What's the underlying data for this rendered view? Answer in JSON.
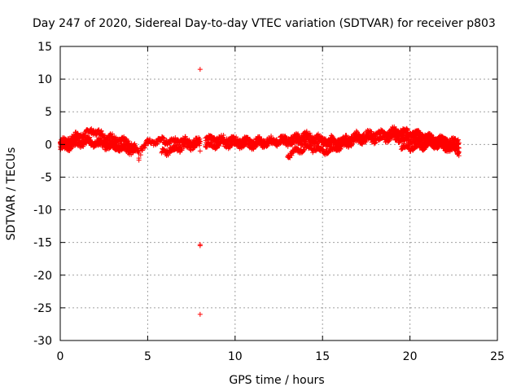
{
  "chart_data": {
    "type": "scatter",
    "title": "Day 247 of 2020, Sidereal Day-to-day VTEC variation (SDTVAR) for receiver p803",
    "xlabel": "GPS time / hours",
    "ylabel": "SDTVAR / TECUs",
    "xlim": [
      0,
      25
    ],
    "ylim": [
      -30,
      15
    ],
    "xticks": [
      0,
      5,
      10,
      15,
      20,
      25
    ],
    "yticks": [
      15,
      10,
      5,
      0,
      -5,
      -10,
      -15,
      -20,
      -25,
      -30
    ],
    "grid": true,
    "marker": "+",
    "color": "#ff0000",
    "bands": [
      {
        "name": "band-a",
        "x": [
          0,
          0.5,
          1,
          1.5,
          1.8,
          2.2,
          3,
          3.5,
          4,
          4.3
        ],
        "y": [
          0.3,
          0.8,
          1.4,
          1.6,
          2.2,
          1.7,
          1.0,
          0.6,
          0.2,
          -0.5
        ]
      },
      {
        "name": "band-b",
        "x": [
          0,
          0.5,
          1,
          1.5,
          2,
          3,
          4,
          4.5
        ],
        "y": [
          -0.6,
          -0.3,
          0,
          0.3,
          0.2,
          -0.4,
          -0.9,
          -1.1
        ]
      },
      {
        "name": "band-c",
        "x": [
          0,
          1,
          2,
          3,
          4
        ],
        "y": [
          0.2,
          0.6,
          0.5,
          0.0,
          -0.3
        ]
      },
      {
        "name": "band-d",
        "x": [
          4.6,
          5,
          5.5,
          6,
          6.5,
          7,
          7.5,
          8
        ],
        "y": [
          -0.5,
          0.2,
          0.5,
          0.6,
          0.5,
          0.6,
          0.4,
          0.5
        ]
      },
      {
        "name": "band-e",
        "x": [
          5.8,
          6.3,
          7,
          7.5,
          8
        ],
        "y": [
          -1.2,
          -0.9,
          -0.4,
          -0.2,
          0
        ]
      },
      {
        "name": "band-f",
        "x": [
          8.3,
          9,
          10,
          11,
          12,
          13,
          14,
          15,
          16,
          17,
          18,
          19,
          20,
          21,
          22,
          22.8
        ],
        "y": [
          0.8,
          0.9,
          0.7,
          0.5,
          0.6,
          0.8,
          1.5,
          0.8,
          0.6,
          1.4,
          1.6,
          1.8,
          1.5,
          1.0,
          0.7,
          0.5
        ]
      },
      {
        "name": "band-g",
        "x": [
          8.3,
          9,
          10,
          11,
          12,
          13,
          14,
          15,
          16,
          17,
          18,
          19,
          20,
          21,
          22,
          22.8
        ],
        "y": [
          -0.2,
          0.0,
          0.1,
          -0.1,
          0.2,
          0.3,
          0.6,
          0.3,
          0.0,
          0.6,
          0.8,
          1.0,
          0.6,
          0.2,
          0.0,
          -0.2
        ]
      },
      {
        "name": "band-h",
        "x": [
          13,
          13.5,
          14,
          14.5,
          15,
          15.5,
          16,
          16.5
        ],
        "y": [
          -1.5,
          -1.0,
          -0.4,
          -0.6,
          -1.0,
          -0.8,
          -0.3,
          0.0
        ]
      },
      {
        "name": "band-i",
        "x": [
          19,
          19.5,
          20,
          20.5,
          21,
          21.5,
          22,
          22.8
        ],
        "y": [
          2.2,
          2.0,
          1.8,
          1.5,
          1.2,
          0.8,
          0.2,
          -1.2
        ]
      },
      {
        "name": "band-j",
        "x": [
          19.5,
          20,
          20.5,
          21,
          21.5,
          22,
          22.8
        ],
        "y": [
          -0.6,
          -0.4,
          -0.3,
          -0.1,
          0.0,
          -0.5,
          -1.0
        ]
      }
    ],
    "points": [
      {
        "x": 8.0,
        "y": 11.5
      },
      {
        "x": 8.0,
        "y": -15.3
      },
      {
        "x": 8.0,
        "y": -15.5
      },
      {
        "x": 8.0,
        "y": -26.0
      },
      {
        "x": 8.0,
        "y": -1.0
      },
      {
        "x": 4.5,
        "y": -2.1
      },
      {
        "x": 4.5,
        "y": -2.4
      },
      {
        "x": 4.6,
        "y": -1.6
      }
    ]
  }
}
